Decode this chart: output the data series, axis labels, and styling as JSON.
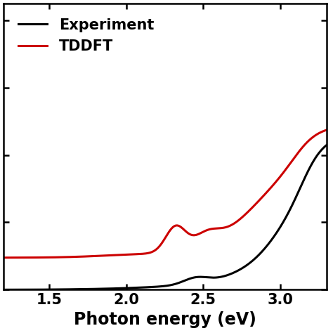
{
  "title": "",
  "xlabel": "Photon energy (eV)",
  "ylabel": "",
  "xlim": [
    1.2,
    3.3
  ],
  "ylim": [
    0,
    8.5
  ],
  "yticks": [
    0,
    2,
    4,
    6,
    8
  ],
  "xticks": [
    1.5,
    2.0,
    2.5,
    3.0
  ],
  "experiment_color": "#000000",
  "tddft_color": "#cc0000",
  "legend_labels": [
    "Experiment",
    "TDDFT"
  ],
  "linewidth": 2.2,
  "xlabel_fontsize": 17,
  "tick_fontsize": 15,
  "legend_fontsize": 15
}
